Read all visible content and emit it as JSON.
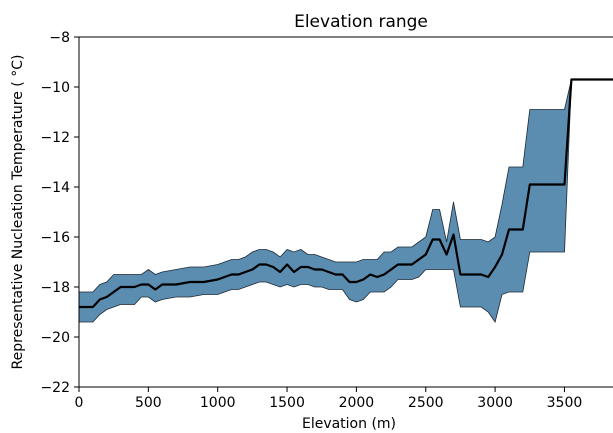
{
  "chart_data": {
    "type": "area",
    "title": "Elevation range",
    "xlabel": "Elevation (m)",
    "ylabel": "Representative Nucleation Temperature ( $^\\circ$C)",
    "xlim": [
      0,
      3850
    ],
    "ylim": [
      -22,
      -8
    ],
    "x_ticks": [
      0,
      500,
      1000,
      1500,
      2000,
      2500,
      3000,
      3500
    ],
    "x_tick_labels": [
      "0",
      "500",
      "1000",
      "1500",
      "2000",
      "2500",
      "3000",
      "3500"
    ],
    "y_ticks": [
      -22,
      -20,
      -18,
      -16,
      -14,
      -12,
      -10,
      -8
    ],
    "y_tick_labels": [
      "−22",
      "−20",
      "−18",
      "−16",
      "−14",
      "−12",
      "−10",
      "−8"
    ],
    "grid": false,
    "colors": {
      "band_fill": "#5b8db1",
      "band_edge": "#1c2a35",
      "line": "#000000"
    },
    "series": [
      {
        "kind": "line",
        "x": [
          0,
          100,
          150,
          200,
          250,
          300,
          400,
          450,
          500,
          550,
          600,
          700,
          800,
          900,
          1000,
          1050,
          1100,
          1150,
          1200,
          1250,
          1300,
          1350,
          1400,
          1450,
          1500,
          1550,
          1600,
          1650,
          1700,
          1750,
          1800,
          1850,
          1900,
          1950,
          2000,
          2050,
          2100,
          2150,
          2200,
          2250,
          2300,
          2350,
          2400,
          2450,
          2500,
          2550,
          2600,
          2650,
          2700,
          2750,
          2800,
          2850,
          2900,
          2950,
          3000,
          3050,
          3100,
          3200,
          3250,
          3300,
          3400,
          3500,
          3550,
          3600,
          3700,
          3850
        ],
        "y": [
          -18.8,
          -18.8,
          -18.5,
          -18.4,
          -18.2,
          -18.0,
          -18.0,
          -17.9,
          -17.9,
          -18.1,
          -17.9,
          -17.9,
          -17.8,
          -17.8,
          -17.7,
          -17.6,
          -17.5,
          -17.5,
          -17.4,
          -17.3,
          -17.1,
          -17.1,
          -17.2,
          -17.4,
          -17.1,
          -17.4,
          -17.2,
          -17.2,
          -17.3,
          -17.3,
          -17.4,
          -17.5,
          -17.5,
          -17.8,
          -17.8,
          -17.7,
          -17.5,
          -17.6,
          -17.5,
          -17.3,
          -17.1,
          -17.1,
          -17.1,
          -16.9,
          -16.7,
          -16.1,
          -16.1,
          -16.7,
          -15.9,
          -17.5,
          -17.5,
          -17.5,
          -17.5,
          -17.6,
          -17.2,
          -16.7,
          -15.7,
          -15.7,
          -13.9,
          -13.9,
          -13.9,
          -13.9,
          -9.7,
          -9.7,
          -9.7,
          -9.7
        ]
      },
      {
        "kind": "band",
        "x": [
          0,
          100,
          150,
          200,
          250,
          300,
          400,
          450,
          500,
          550,
          600,
          700,
          800,
          900,
          1000,
          1050,
          1100,
          1150,
          1200,
          1250,
          1300,
          1350,
          1400,
          1450,
          1500,
          1550,
          1600,
          1650,
          1700,
          1750,
          1800,
          1850,
          1900,
          1950,
          2000,
          2050,
          2100,
          2150,
          2200,
          2250,
          2300,
          2350,
          2400,
          2450,
          2500,
          2550,
          2600,
          2650,
          2700,
          2750,
          2800,
          2850,
          2900,
          2950,
          3000,
          3050,
          3100,
          3200,
          3250,
          3300,
          3400,
          3500,
          3550,
          3600,
          3700,
          3850
        ],
        "upper": [
          -18.2,
          -18.2,
          -17.9,
          -17.8,
          -17.5,
          -17.5,
          -17.5,
          -17.5,
          -17.3,
          -17.5,
          -17.4,
          -17.3,
          -17.2,
          -17.2,
          -17.1,
          -17.0,
          -16.9,
          -16.9,
          -16.8,
          -16.6,
          -16.5,
          -16.5,
          -16.6,
          -16.8,
          -16.5,
          -16.6,
          -16.5,
          -16.7,
          -16.7,
          -16.8,
          -16.9,
          -17.0,
          -17.0,
          -17.0,
          -17.0,
          -16.9,
          -16.9,
          -16.9,
          -16.6,
          -16.6,
          -16.4,
          -16.4,
          -16.4,
          -16.2,
          -16.0,
          -14.9,
          -14.9,
          -16.2,
          -14.6,
          -16.1,
          -16.1,
          -16.1,
          -16.1,
          -16.2,
          -16.0,
          -14.7,
          -13.2,
          -13.2,
          -10.9,
          -10.9,
          -10.9,
          -10.9,
          -9.7,
          -9.7,
          -9.7,
          -9.7
        ],
        "lower": [
          -19.4,
          -19.4,
          -19.1,
          -18.9,
          -18.8,
          -18.7,
          -18.7,
          -18.4,
          -18.4,
          -18.6,
          -18.5,
          -18.4,
          -18.4,
          -18.3,
          -18.3,
          -18.2,
          -18.1,
          -18.1,
          -18.0,
          -17.9,
          -17.8,
          -17.8,
          -17.9,
          -18.0,
          -17.9,
          -18.0,
          -17.9,
          -17.9,
          -18.0,
          -18.0,
          -18.1,
          -18.1,
          -18.1,
          -18.5,
          -18.6,
          -18.5,
          -18.2,
          -18.2,
          -18.2,
          -18.0,
          -17.7,
          -17.7,
          -17.7,
          -17.6,
          -17.3,
          -17.3,
          -17.3,
          -17.3,
          -17.3,
          -18.8,
          -18.8,
          -18.8,
          -18.8,
          -19.0,
          -19.4,
          -18.3,
          -18.2,
          -18.2,
          -16.6,
          -16.6,
          -16.6,
          -16.6,
          -9.7,
          -9.7,
          -9.7,
          -9.7
        ]
      }
    ]
  }
}
